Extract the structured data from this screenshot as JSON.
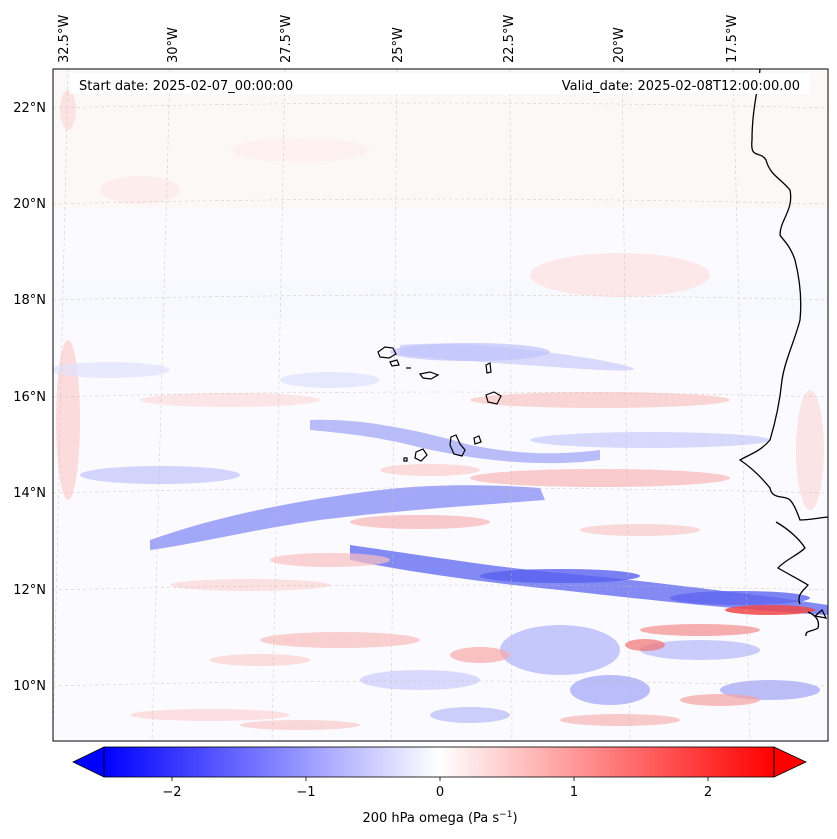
{
  "header": {
    "start_date": "Start date: 2025-02-07_00:00:00",
    "valid_date": "Valid_date: 2025-02-08T12:00:00.00"
  },
  "axes": {
    "lon_labels": [
      "32.5°W",
      "30°W",
      "27.5°W",
      "25°W",
      "22.5°W",
      "20°W",
      "17.5°W"
    ],
    "lat_labels": [
      "22°N",
      "20°N",
      "18°N",
      "16°N",
      "14°N",
      "12°N",
      "10°N"
    ]
  },
  "colorbar": {
    "ticks": [
      "−2",
      "−1",
      "0",
      "1",
      "2"
    ],
    "label": "200 hPa omega (Pa s",
    "label_sup": "−1",
    "label_close": ")",
    "range": [
      -2.6,
      2.6
    ],
    "colors": {
      "negative": "#0000ff",
      "zero": "#ffffff",
      "positive": "#ff0000"
    }
  },
  "map": {
    "projection": "lambert-conformal",
    "lon_range": [
      -33,
      -15.5
    ],
    "lat_range": [
      9,
      22.8
    ],
    "coastline": "#000000",
    "gridlines": "dashed"
  }
}
